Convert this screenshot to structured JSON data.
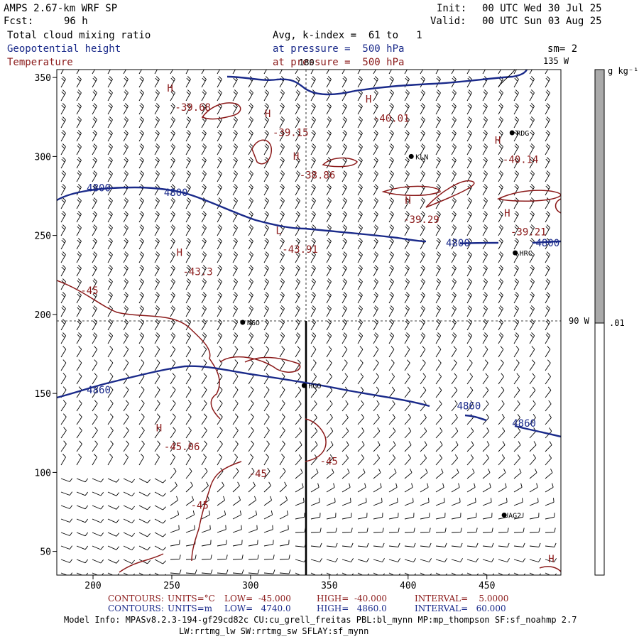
{
  "header": {
    "model_title": "AMPS 2.67-km WRF SP",
    "fcst_label": "Fcst:",
    "fcst_value": "96 h",
    "init_label": "Init:",
    "init_value": "00 UTC Wed 30 Jul 25",
    "valid_label": "Valid:",
    "valid_value": "00 UTC Sun 03 Aug 25",
    "field1": "Total cloud mixing ratio",
    "field1_info": "Avg, k-index =  61 to   1",
    "field2": "Geopotential height",
    "field2_info": "at pressure =  500 hPa",
    "field3": "Temperature",
    "field3_info": "at pressure =  500 hPa",
    "sm": "sm= 2"
  },
  "colors": {
    "height_contour": "#1a2a8a",
    "temperature_contour": "#8b1a1a",
    "barbs": "#000000",
    "colorbar_fill": "#aaaaaa"
  },
  "axes": {
    "x_ticks": [
      "200",
      "250",
      "300",
      "350",
      "400",
      "450"
    ],
    "y_ticks": [
      "350",
      "300",
      "250",
      "200",
      "150",
      "100",
      "50"
    ],
    "x_range": [
      177,
      497
    ],
    "y_range": [
      35,
      355
    ]
  },
  "meridians": {
    "lon_180": "180",
    "lon_135": "135 W",
    "lon_90": "90 W"
  },
  "colorbar": {
    "unit": "g kg⁻¹",
    "level": ".01",
    "level_value": 0.01
  },
  "stations": [
    {
      "name": "KLN",
      "x": 402,
      "y": 300
    },
    {
      "name": "RDG",
      "x": 466,
      "y": 315
    },
    {
      "name": "HRC",
      "x": 468,
      "y": 239
    },
    {
      "name": "NGO",
      "x": 295,
      "y": 195
    },
    {
      "name": "HGO",
      "x": 334,
      "y": 155
    },
    {
      "name": "AG2",
      "x": 461,
      "y": 73
    }
  ],
  "height_labels": [
    {
      "text": "4800",
      "x": 196,
      "y": 278
    },
    {
      "text": "4800",
      "x": 245,
      "y": 275
    },
    {
      "text": "4800",
      "x": 424,
      "y": 243
    },
    {
      "text": "4800",
      "x": 481,
      "y": 243
    },
    {
      "text": "4860",
      "x": 196,
      "y": 150
    },
    {
      "text": "4860",
      "x": 431,
      "y": 140
    },
    {
      "text": "4860",
      "x": 466,
      "y": 129
    }
  ],
  "temp_labels": [
    {
      "text": "H",
      "x": 247,
      "y": 341
    },
    {
      "text": "-39.68",
      "x": 252,
      "y": 329
    },
    {
      "text": "H",
      "x": 309,
      "y": 325
    },
    {
      "text": "-39.15",
      "x": 314,
      "y": 313
    },
    {
      "text": "H",
      "x": 373,
      "y": 334
    },
    {
      "text": "-40.01",
      "x": 378,
      "y": 322
    },
    {
      "text": "H",
      "x": 455,
      "y": 308
    },
    {
      "text": "-40.14",
      "x": 460,
      "y": 296
    },
    {
      "text": "H",
      "x": 327,
      "y": 298
    },
    {
      "text": "-38.86",
      "x": 331,
      "y": 286
    },
    {
      "text": "H",
      "x": 398,
      "y": 270
    },
    {
      "text": "-39.29",
      "x": 397,
      "y": 258
    },
    {
      "text": "H",
      "x": 461,
      "y": 262
    },
    {
      "text": "-39.21",
      "x": 465,
      "y": 250
    },
    {
      "text": "L",
      "x": 316,
      "y": 251
    },
    {
      "text": "-43.91",
      "x": 320,
      "y": 239
    },
    {
      "text": "H",
      "x": 253,
      "y": 237
    },
    {
      "text": "-43.3",
      "x": 257,
      "y": 225
    },
    {
      "text": "-45",
      "x": 192,
      "y": 213
    },
    {
      "text": "H",
      "x": 240,
      "y": 126
    },
    {
      "text": "-45.06",
      "x": 245,
      "y": 114
    },
    {
      "text": "-45",
      "x": 299,
      "y": 97
    },
    {
      "text": "-45",
      "x": 344,
      "y": 105
    },
    {
      "text": "-45",
      "x": 262,
      "y": 77
    },
    {
      "text": "H",
      "x": 489,
      "y": 43
    }
  ],
  "footer": {
    "c1_label": "CONTOURS:",
    "c1_units": "UNITS=°C",
    "c1_low": "LOW=  -45.000",
    "c1_high": "HIGH=  -40.000",
    "c1_interval": "INTERVAL=    5.0000",
    "c2_label": "CONTOURS:",
    "c2_units": "UNITS=m",
    "c2_low": "LOW=   4740.0",
    "c2_high": "HIGH=   4860.0",
    "c2_interval": "INTERVAL=   60.000",
    "model_info": "Model Info: MPASv8.2.3-194-gf29cd82c CU:cu_grell_freitas PBL:bl_mynn MP:mp_thompson SF:sf_noahmp 2.7",
    "model_info2": "LW:rrtmg_lw SW:rrtmg_sw SFLAY:sf_mynn"
  }
}
